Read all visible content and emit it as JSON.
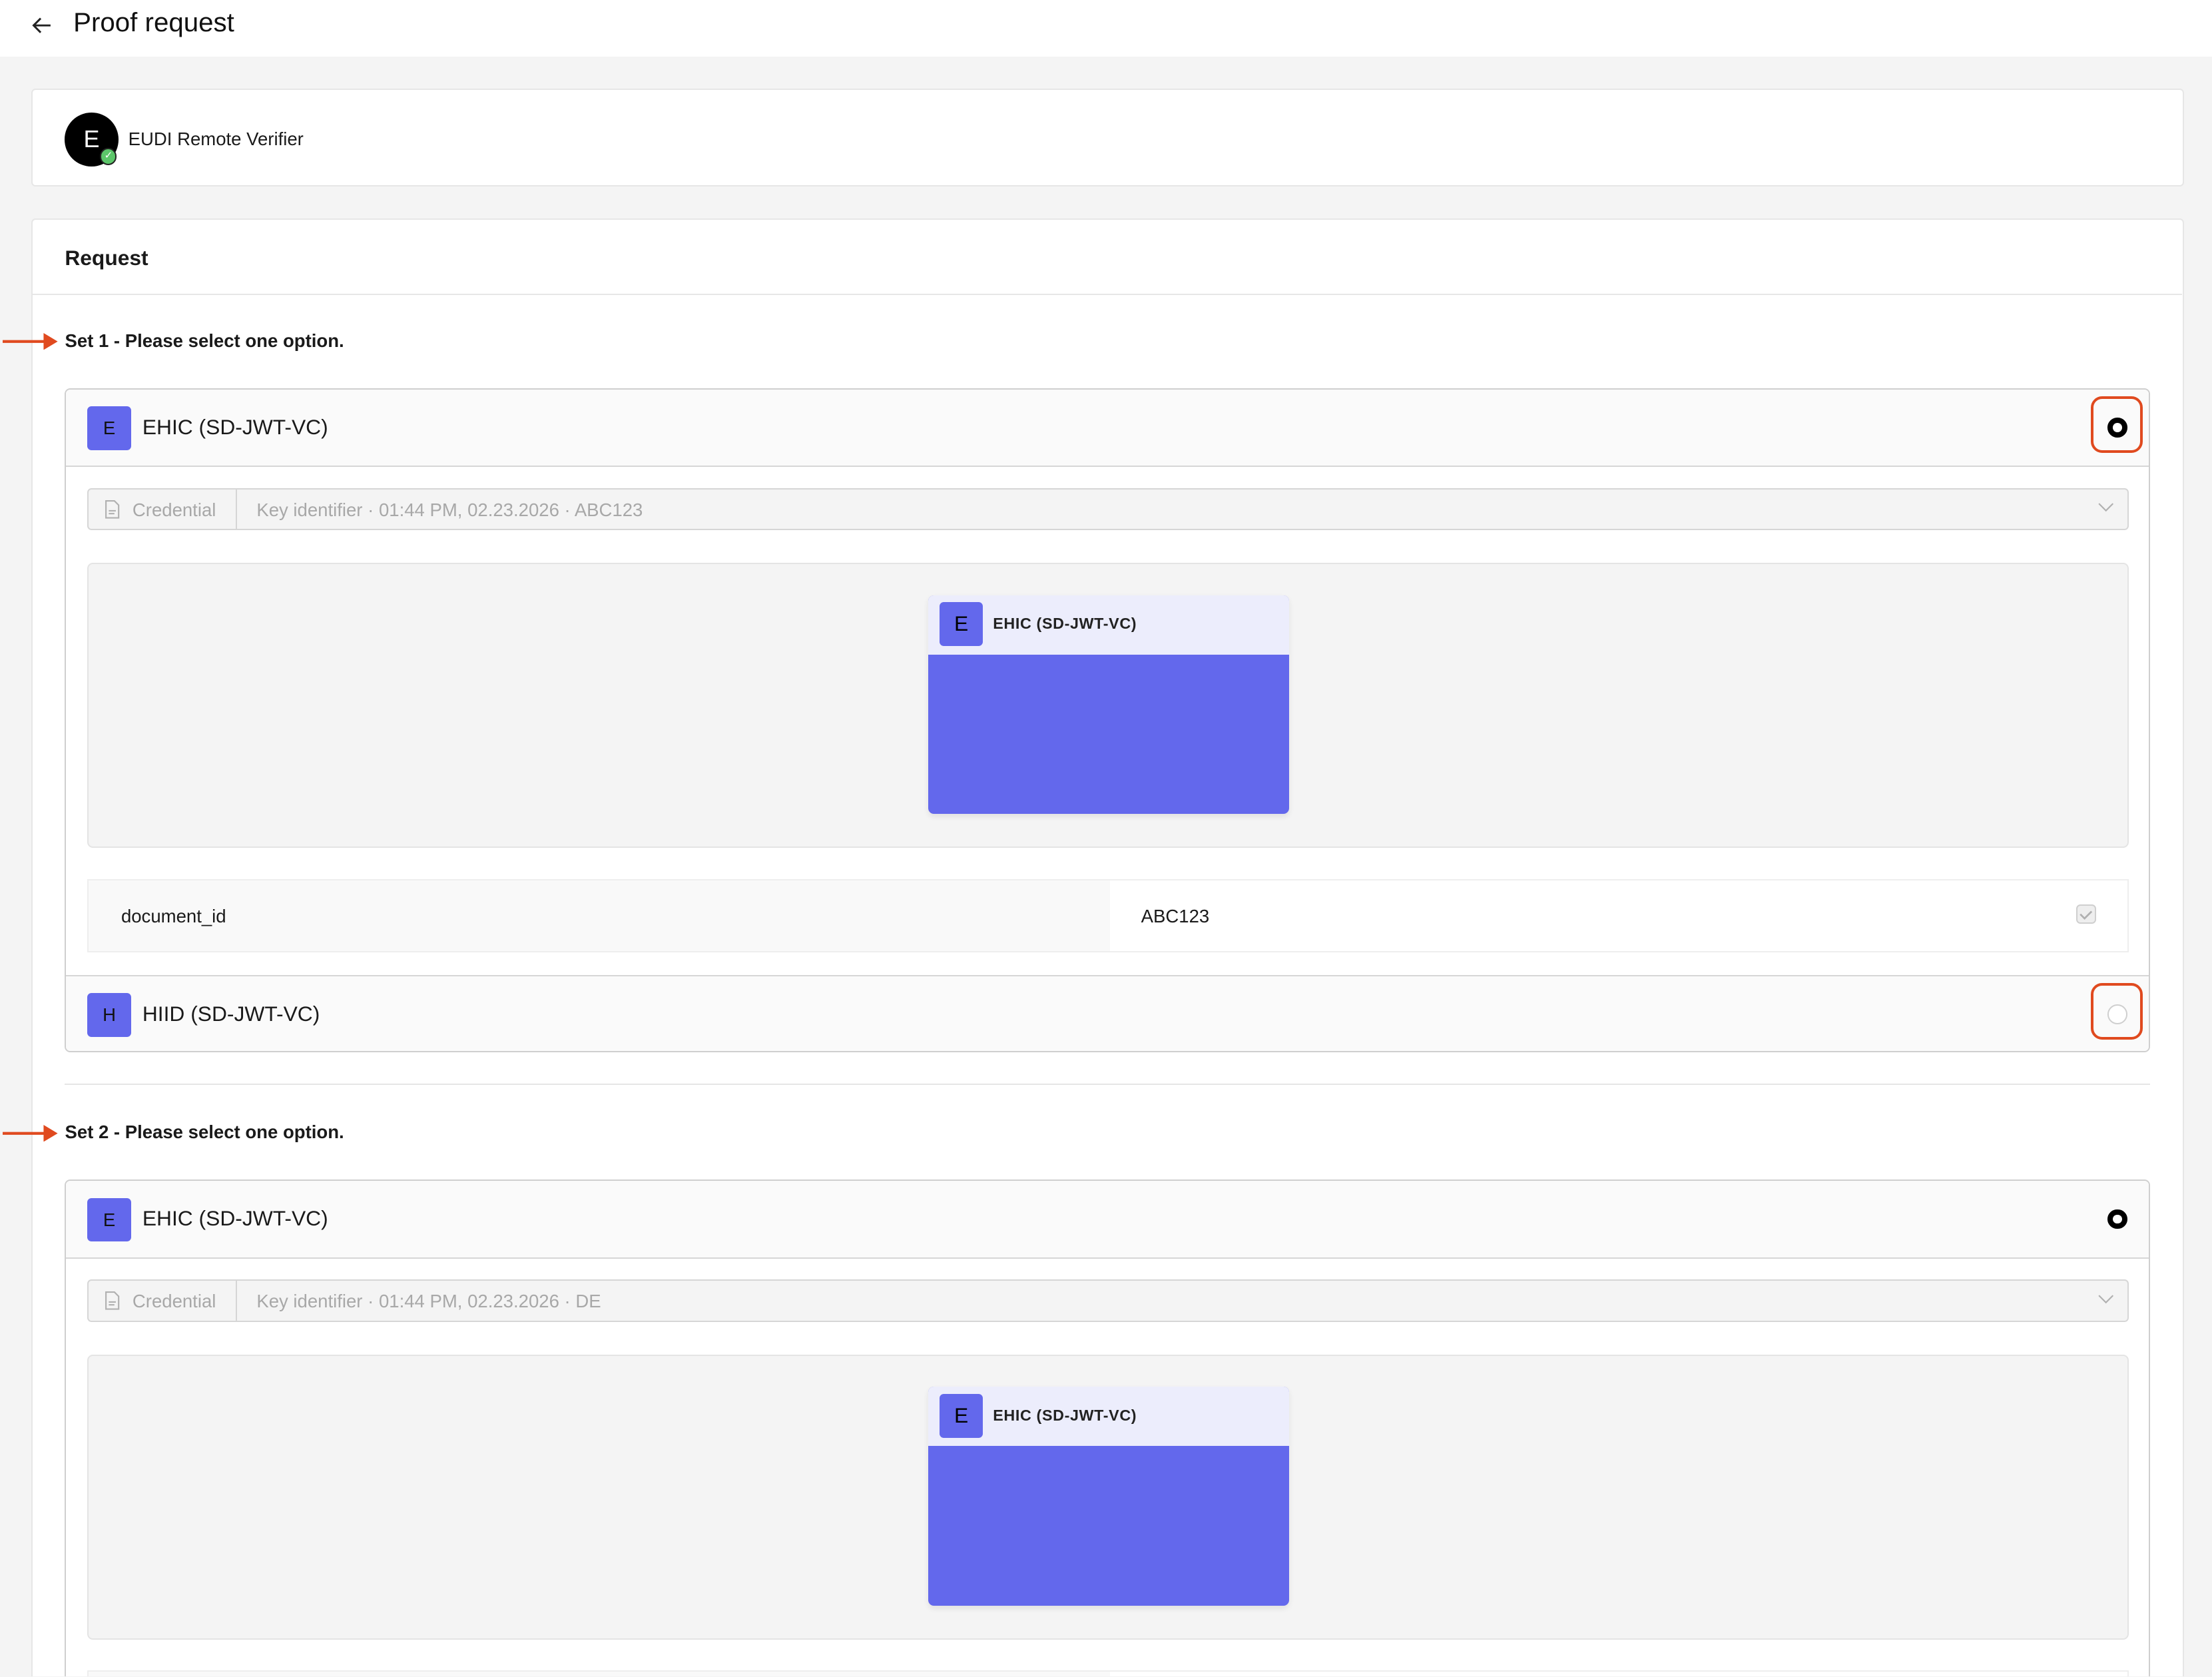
{
  "header": {
    "title": "Proof request",
    "back_icon": "arrow-left-icon"
  },
  "verifier": {
    "avatar_letter": "E",
    "name": "EUDI Remote Verifier",
    "verified_icon": "check-badge-icon"
  },
  "request": {
    "title": "Request",
    "sets": [
      {
        "title": "Set 1 - Please select one option.",
        "options": [
          {
            "badge": "E",
            "label": "EHIC (SD-JWT-VC)",
            "selected": true,
            "credential_label": "Credential",
            "credential_value": "Key identifier · 01:44 PM, 02.23.2026 · ABC123",
            "preview": {
              "badge": "E",
              "label": "EHIC (SD-JWT-VC)"
            },
            "attributes": [
              {
                "key": "document_id",
                "value": "ABC123",
                "checked": true
              }
            ]
          },
          {
            "badge": "H",
            "label": "HIID (SD-JWT-VC)",
            "selected": false
          }
        ]
      },
      {
        "title": "Set 2 - Please select one option.",
        "options": [
          {
            "badge": "E",
            "label": "EHIC (SD-JWT-VC)",
            "selected": true,
            "credential_label": "Credential",
            "credential_value": "Key identifier · 01:44 PM, 02.23.2026 · DE",
            "preview": {
              "badge": "E",
              "label": "EHIC (SD-JWT-VC)"
            }
          }
        ]
      }
    ]
  },
  "colors": {
    "accent": "#6368ec",
    "accent_light": "#ecedfc",
    "annotation": "#e04a1f",
    "background": "#f4f4f4"
  }
}
